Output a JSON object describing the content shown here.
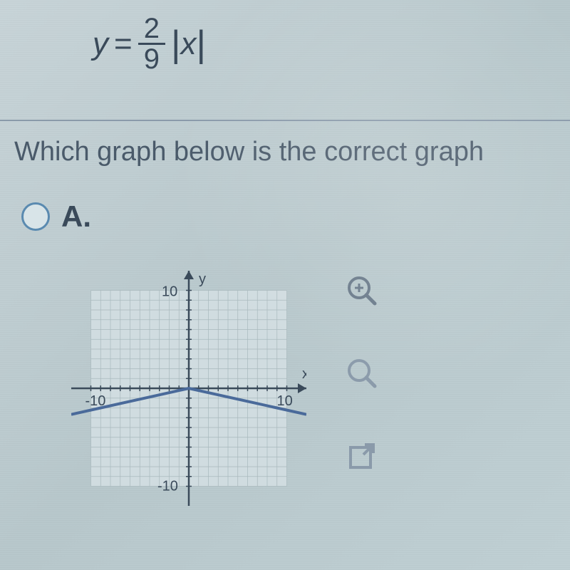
{
  "equation": {
    "lhs": "y",
    "equals": "=",
    "fraction_num": "2",
    "fraction_den": "9",
    "abs_var": "x"
  },
  "question_text": "Which graph below is the correct graph",
  "option": {
    "label": "A."
  },
  "graph": {
    "type": "absolute-value-chart",
    "xlim": [
      -12,
      12
    ],
    "ylim": [
      -12,
      12
    ],
    "xtick_step": 1,
    "ytick_step": 1,
    "x_axis_label": "x",
    "y_axis_label": "y",
    "tick_labels": {
      "x_neg": "-10",
      "x_pos": "10",
      "y_neg": "-10",
      "y_pos": "10"
    },
    "background_color": "#d0dce0",
    "grid_color": "#a8b8bc",
    "axis_color": "#3a4a5a",
    "curve_color": "#4a6a9a",
    "curve_width": 4,
    "curve_points": [
      [
        -12,
        -2.67
      ],
      [
        -9,
        -2.0
      ],
      [
        -6,
        -1.33
      ],
      [
        -3,
        -0.67
      ],
      [
        0,
        0
      ],
      [
        3,
        -0.67
      ],
      [
        6,
        -1.33
      ],
      [
        9,
        -2.0
      ],
      [
        12,
        -2.67
      ]
    ],
    "label_fontsize": 20,
    "label_color": "#3a4a5a"
  },
  "tools": {
    "zoom_in_icon": "zoom-in",
    "zoom_icon": "zoom",
    "open_icon": "open-new"
  },
  "colors": {
    "page_bg": "#c8d4d8",
    "text": "#4a5a6a",
    "radio_border": "#5a8ab0"
  }
}
